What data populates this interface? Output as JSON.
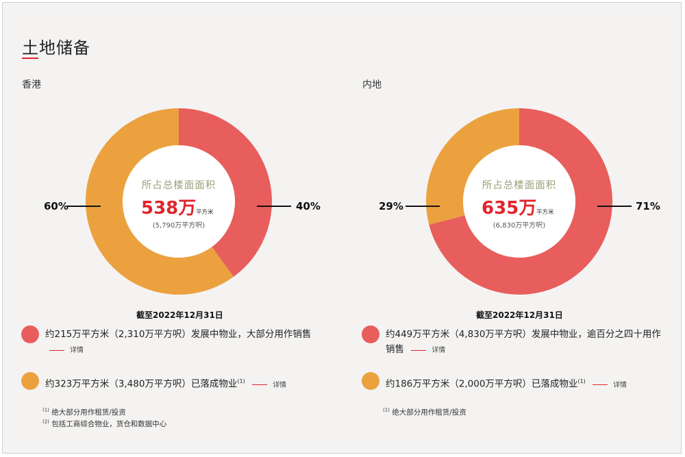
{
  "page": {
    "title": "土地储备"
  },
  "colors": {
    "accent_red": "#e0242b",
    "slice_red": "#e85e5d",
    "slice_orange": "#eca13f"
  },
  "center_caption": "所占总楼面面积",
  "sqm_unit": "平方米",
  "detail_label": "详情",
  "hk": {
    "region": "香港",
    "total": "538万",
    "total_sqft": "(5,790万平方呎)",
    "pct_left": "60%",
    "pct_right": "40%",
    "as_of": "截至2022年12月31日",
    "legend": [
      {
        "text": "约215万平方米（2,310万平方呎）发展中物业，大部分用作销售",
        "color": "#e85e5d"
      },
      {
        "text": "约323万平方米（3,480万平方呎）已落成物业",
        "sup": "(1)",
        "color": "#eca13f"
      }
    ],
    "footnotes": [
      {
        "mark": "(1)",
        "text": "绝大部分用作租赁/投资"
      },
      {
        "mark": "(2)",
        "text": "包括工商综合物业，货仓和数据中心"
      }
    ]
  },
  "mainland": {
    "region": "内地",
    "total": "635万",
    "total_sqft": "(6,830万平方呎)",
    "pct_left": "29%",
    "pct_right": "71%",
    "as_of": "截至2022年12月31日",
    "legend": [
      {
        "text_line1": "约449万平方米（4,830万平方呎）发展中物业，逾百分之四十用作",
        "text_line2": "销售",
        "color": "#e85e5d"
      },
      {
        "text": "约186万平方米（2,000万平方呎）已落成物业",
        "sup": "(1)",
        "color": "#eca13f"
      }
    ],
    "footnotes": [
      {
        "mark": "(1)",
        "text": "绝大部分用作租赁/投资"
      }
    ]
  },
  "chart_data": [
    {
      "type": "pie",
      "title": "香港",
      "categories": [
        "发展中物业",
        "已落成物业"
      ],
      "values": [
        40,
        60
      ],
      "unit": "%",
      "colors": [
        "#e85e5d",
        "#eca13f"
      ]
    },
    {
      "type": "pie",
      "title": "内地",
      "categories": [
        "发展中物业",
        "已落成物业"
      ],
      "values": [
        71,
        29
      ],
      "unit": "%",
      "colors": [
        "#e85e5d",
        "#eca13f"
      ]
    }
  ]
}
